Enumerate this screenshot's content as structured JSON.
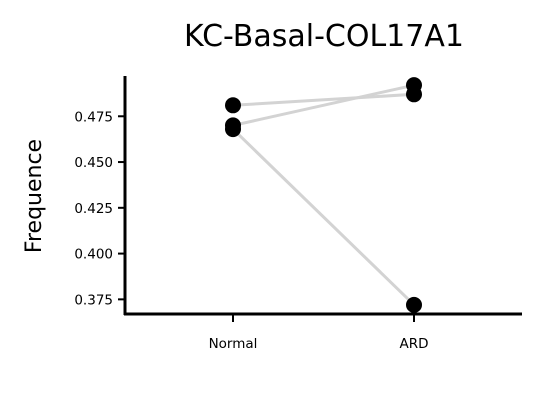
{
  "chart_data": {
    "type": "scatter",
    "title": "KC-Basal-COL17A1",
    "xlabel": "",
    "ylabel": "Frequence",
    "categories": [
      "Normal",
      "ARD"
    ],
    "ylim": [
      0.367,
      0.497
    ],
    "yticks": [
      0.375,
      0.4,
      0.425,
      0.45,
      0.475
    ],
    "ytick_labels": [
      "0.375",
      "0.400",
      "0.425",
      "0.450",
      "0.475"
    ],
    "grid": false,
    "legend": "none",
    "pairs": [
      {
        "values": [
          0.481,
          0.487
        ]
      },
      {
        "values": [
          0.47,
          0.492
        ]
      },
      {
        "values": [
          0.468,
          0.372
        ]
      }
    ],
    "colors": {
      "line": "#d3d3d3",
      "point": "#000000",
      "axis": "#000000"
    }
  }
}
